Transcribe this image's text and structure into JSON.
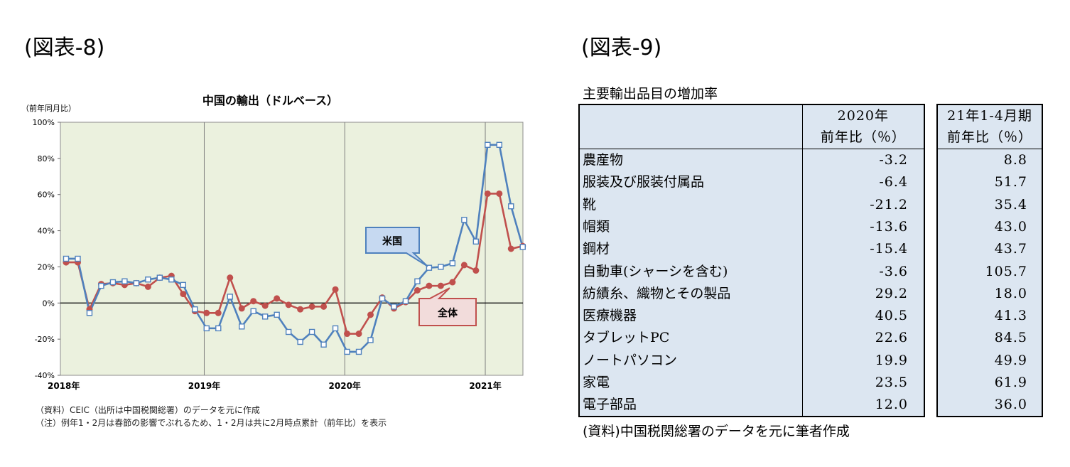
{
  "figures": {
    "left_label": "(図表-8)",
    "right_label": "(図表-9)"
  },
  "chart_data": {
    "type": "line",
    "title": "中国の輸出（ドルベース）",
    "ylabel": "（前年同月比）",
    "ylim": [
      -40,
      100
    ],
    "yticks": [
      -40,
      -20,
      0,
      20,
      40,
      60,
      80,
      100
    ],
    "ytick_labels": [
      "-40%",
      "-20%",
      "0%",
      "20%",
      "40%",
      "60%",
      "80%",
      "100%"
    ],
    "x_start_month": "2018-01",
    "x_end_month": "2021-04",
    "xtick_labels": [
      "2018年",
      "2019年",
      "2020年",
      "2021年"
    ],
    "grid": "vertical lines at year starts; zero baseline",
    "series": [
      {
        "name": "米国",
        "color": "#4f81bd",
        "marker": "square-open",
        "values": [
          24.5,
          24.5,
          -5.5,
          9.5,
          11.5,
          12.0,
          11.0,
          13.0,
          14.0,
          13.0,
          10.0,
          -3.5,
          -14.0,
          -14.0,
          3.5,
          -13.0,
          -4.5,
          -7.5,
          -6.5,
          -16.0,
          -21.5,
          -16.0,
          -23.0,
          -14.0,
          -27.0,
          -27.0,
          -20.5,
          2.5,
          -2.0,
          1.0,
          12.0,
          19.5,
          20.0,
          22.0,
          46.0,
          34.0,
          87.5,
          87.5,
          53.5,
          31.0
        ]
      },
      {
        "name": "全体",
        "color": "#c0504d",
        "marker": "circle-filled",
        "values": [
          22.5,
          22.5,
          -3.5,
          10.5,
          11.0,
          10.0,
          11.0,
          9.0,
          14.0,
          15.0,
          5.0,
          -4.5,
          -5.5,
          -5.5,
          14.0,
          -3.0,
          1.0,
          -1.5,
          2.5,
          -1.0,
          -3.5,
          -2.0,
          -2.0,
          7.5,
          -17.0,
          -17.0,
          -6.5,
          3.0,
          -3.0,
          0.5,
          7.0,
          9.5,
          9.5,
          11.5,
          21.0,
          18.0,
          60.5,
          60.5,
          30.0,
          31.5
        ]
      }
    ],
    "callouts": [
      {
        "series": "米国",
        "text": "米国"
      },
      {
        "series": "全体",
        "text": "全体"
      }
    ]
  },
  "notes": {
    "source": "（資料）CEIC（出所は中国税関総署）のデータを元に作成",
    "note": "（注）例年1・2月は春節の影響でぶれるため、1・2月は共に2月時点累計（前年比）を表示"
  },
  "table": {
    "title": "主要輸出品目の増加率",
    "header_col1_line1": "2020年",
    "header_col1_line2": "前年比（％）",
    "header_col2_line1": "21年1-4月期",
    "header_col2_line2": "前年比（％）",
    "rows": [
      {
        "name": "農産物",
        "v2020": "-3.2",
        "v2021": "8.8"
      },
      {
        "name": "服装及び服装付属品",
        "v2020": "-6.4",
        "v2021": "51.7"
      },
      {
        "name": "靴",
        "v2020": "-21.2",
        "v2021": "35.4"
      },
      {
        "name": "帽類",
        "v2020": "-13.6",
        "v2021": "43.0"
      },
      {
        "name": "鋼材",
        "v2020": "-15.4",
        "v2021": "43.7"
      },
      {
        "name": "自動車(シャーシを含む)",
        "v2020": "-3.6",
        "v2021": "105.7"
      },
      {
        "name": "紡績糸、織物とその製品",
        "v2020": "29.2",
        "v2021": "18.0"
      },
      {
        "name": "医療機器",
        "v2020": "40.5",
        "v2021": "41.3"
      },
      {
        "name": "タブレットPC",
        "v2020": "22.6",
        "v2021": "84.5"
      },
      {
        "name": "ノートパソコン",
        "v2020": "19.9",
        "v2021": "49.9"
      },
      {
        "name": "家電",
        "v2020": "23.5",
        "v2021": "61.9"
      },
      {
        "name": "電子部品",
        "v2020": "12.0",
        "v2021": "36.0"
      }
    ],
    "source": "(資料)中国税関総署のデータを元に筆者作成"
  }
}
